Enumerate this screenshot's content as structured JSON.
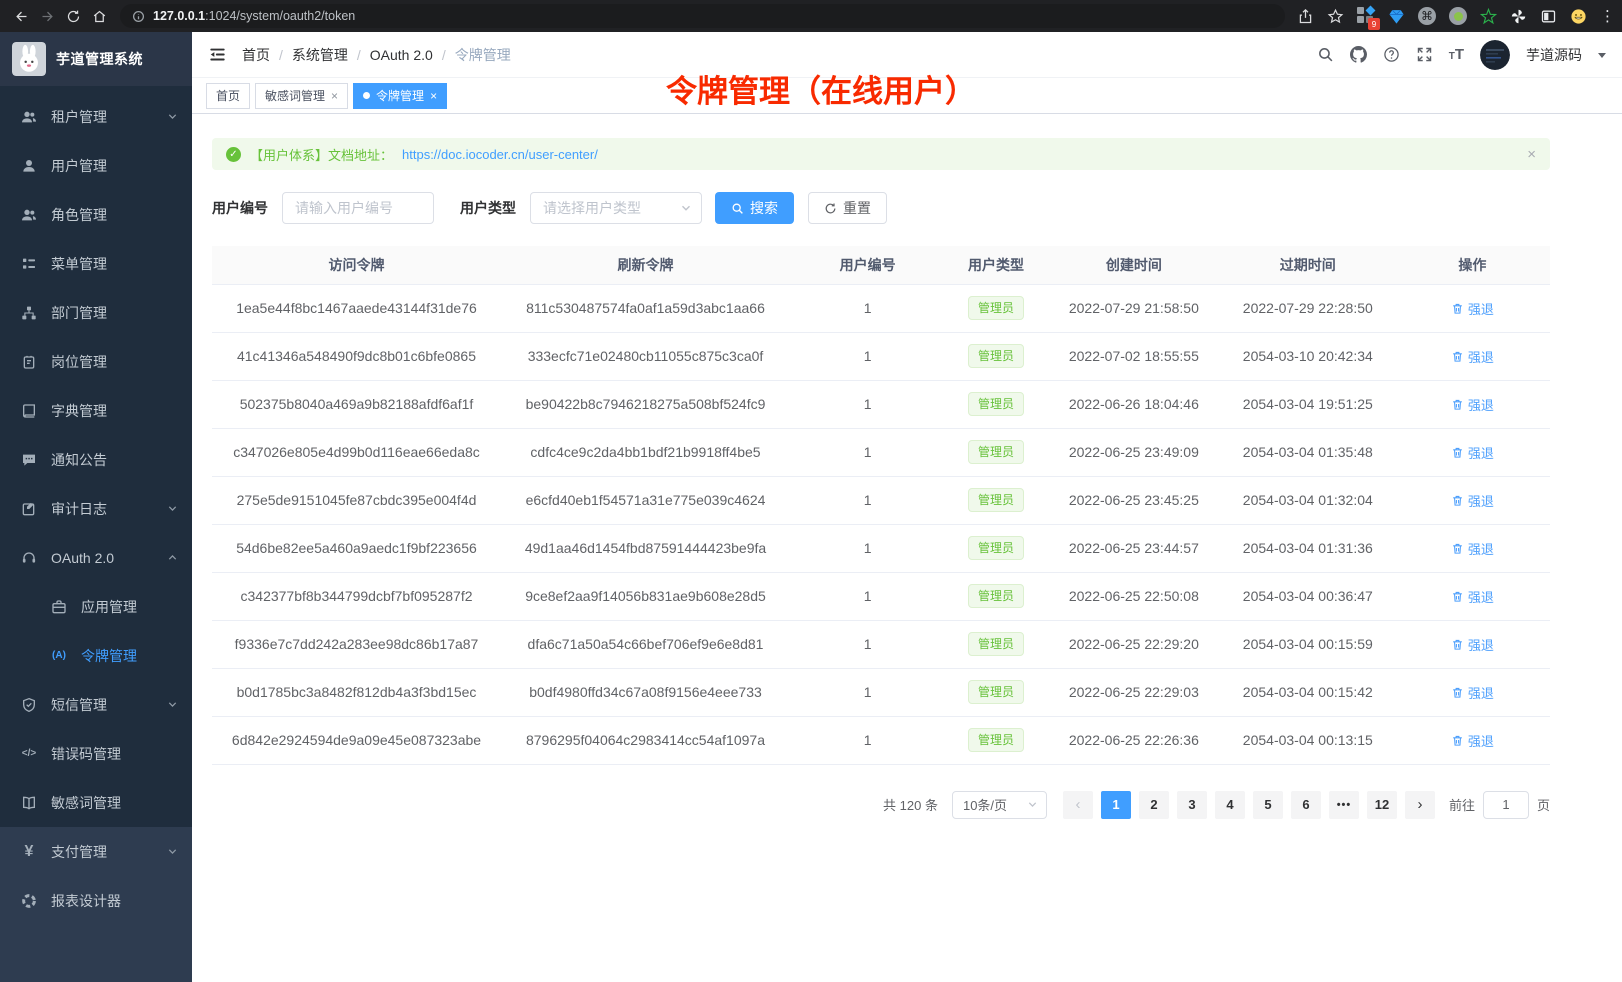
{
  "browser": {
    "url_host": "127.0.0.1",
    "url_rest": ":1024/system/oauth2/token",
    "extensions_badge": "9"
  },
  "sidebar": {
    "logo_title": "芋道管理系统",
    "items": [
      {
        "label": "租户管理",
        "icon": "tenant-icon",
        "chevron": "down"
      },
      {
        "label": "用户管理",
        "icon": "user-icon"
      },
      {
        "label": "角色管理",
        "icon": "role-icon"
      },
      {
        "label": "菜单管理",
        "icon": "menu-icon"
      },
      {
        "label": "部门管理",
        "icon": "dept-icon"
      },
      {
        "label": "岗位管理",
        "icon": "post-icon"
      },
      {
        "label": "字典管理",
        "icon": "dict-icon"
      },
      {
        "label": "通知公告",
        "icon": "notice-icon"
      },
      {
        "label": "审计日志",
        "icon": "audit-icon",
        "chevron": "down"
      },
      {
        "label": "OAuth 2.0",
        "icon": "oauth-icon",
        "chevron": "up"
      },
      {
        "label": "应用管理",
        "icon": "app-icon",
        "sub": true
      },
      {
        "label": "令牌管理",
        "icon": "token-icon",
        "sub": true,
        "active": true
      },
      {
        "label": "短信管理",
        "icon": "sms-icon",
        "chevron": "down"
      },
      {
        "label": "错误码管理",
        "icon": "errcode-icon"
      },
      {
        "label": "敏感词管理",
        "icon": "sensitive-icon"
      },
      {
        "label": "支付管理",
        "icon": "pay-icon",
        "chevron": "down",
        "section": 2
      },
      {
        "label": "报表设计器",
        "icon": "report-icon",
        "section": 2
      }
    ]
  },
  "header": {
    "breadcrumb": [
      "首页",
      "系统管理",
      "OAuth 2.0",
      "令牌管理"
    ],
    "username": "芋道源码"
  },
  "tabs": [
    {
      "label": "首页",
      "active": false,
      "closable": false
    },
    {
      "label": "敏感词管理",
      "active": false,
      "closable": true
    },
    {
      "label": "令牌管理",
      "active": true,
      "closable": true
    }
  ],
  "annotation": "令牌管理（在线用户）",
  "alert": {
    "text": "【用户体系】文档地址：",
    "link": "https://doc.iocoder.cn/user-center/"
  },
  "filters": {
    "user_id_label": "用户编号",
    "user_id_placeholder": "请输入用户编号",
    "user_type_label": "用户类型",
    "user_type_placeholder": "请选择用户类型",
    "search_label": "搜索",
    "reset_label": "重置"
  },
  "table": {
    "headers": [
      "访问令牌",
      "刷新令牌",
      "用户编号",
      "用户类型",
      "创建时间",
      "过期时间",
      "操作"
    ],
    "action_label": "强退",
    "rows": [
      {
        "access_token": "1ea5e44f8bc1467aaede43144f31de76",
        "refresh_token": "811c530487574fa0af1a59d3abc1aa66",
        "user_id": "1",
        "user_type": "管理员",
        "created_at": "2022-07-29 21:58:50",
        "expires_at": "2022-07-29 22:28:50"
      },
      {
        "access_token": "41c41346a548490f9dc8b01c6bfe0865",
        "refresh_token": "333ecfc71e02480cb11055c875c3ca0f",
        "user_id": "1",
        "user_type": "管理员",
        "created_at": "2022-07-02 18:55:55",
        "expires_at": "2054-03-10 20:42:34"
      },
      {
        "access_token": "502375b8040a469a9b82188afdf6af1f",
        "refresh_token": "be90422b8c7946218275a508bf524fc9",
        "user_id": "1",
        "user_type": "管理员",
        "created_at": "2022-06-26 18:04:46",
        "expires_at": "2054-03-04 19:51:25"
      },
      {
        "access_token": "c347026e805e4d99b0d116eae66eda8c",
        "refresh_token": "cdfc4ce9c2da4bb1bdf21b9918ff4be5",
        "user_id": "1",
        "user_type": "管理员",
        "created_at": "2022-06-25 23:49:09",
        "expires_at": "2054-03-04 01:35:48"
      },
      {
        "access_token": "275e5de9151045fe87cbdc395e004f4d",
        "refresh_token": "e6cfd40eb1f54571a31e775e039c4624",
        "user_id": "1",
        "user_type": "管理员",
        "created_at": "2022-06-25 23:45:25",
        "expires_at": "2054-03-04 01:32:04"
      },
      {
        "access_token": "54d6be82ee5a460a9aedc1f9bf223656",
        "refresh_token": "49d1aa46d1454fbd87591444423be9fa",
        "user_id": "1",
        "user_type": "管理员",
        "created_at": "2022-06-25 23:44:57",
        "expires_at": "2054-03-04 01:31:36"
      },
      {
        "access_token": "c342377bf8b344799dcbf7bf095287f2",
        "refresh_token": "9ce8ef2aa9f14056b831ae9b608e28d5",
        "user_id": "1",
        "user_type": "管理员",
        "created_at": "2022-06-25 22:50:08",
        "expires_at": "2054-03-04 00:36:47"
      },
      {
        "access_token": "f9336e7c7dd242a283ee98dc86b17a87",
        "refresh_token": "dfa6c71a50a54c66bef706ef9e6e8d81",
        "user_id": "1",
        "user_type": "管理员",
        "created_at": "2022-06-25 22:29:20",
        "expires_at": "2054-03-04 00:15:59"
      },
      {
        "access_token": "b0d1785bc3a8482f812db4a3f3bd15ec",
        "refresh_token": "b0df4980ffd34c67a08f9156e4eee733",
        "user_id": "1",
        "user_type": "管理员",
        "created_at": "2022-06-25 22:29:03",
        "expires_at": "2054-03-04 00:15:42"
      },
      {
        "access_token": "6d842e2924594de9a09e45e087323abe",
        "refresh_token": "8796295f04064c2983414cc54af1097a",
        "user_id": "1",
        "user_type": "管理员",
        "created_at": "2022-06-25 22:26:36",
        "expires_at": "2054-03-04 00:13:15"
      }
    ]
  },
  "pagination": {
    "total": "共 120 条",
    "page_size": "10条/页",
    "pages": [
      "1",
      "2",
      "3",
      "4",
      "5",
      "6",
      "...",
      "12"
    ],
    "active_page": "1",
    "goto_label": "前往",
    "goto_value": "1",
    "unit_label": "页"
  },
  "colors": {
    "accent": "#409eff",
    "success": "#67c23a",
    "annotation_red": "#f82a00",
    "sidebar_bg": "#1f2d3d"
  }
}
